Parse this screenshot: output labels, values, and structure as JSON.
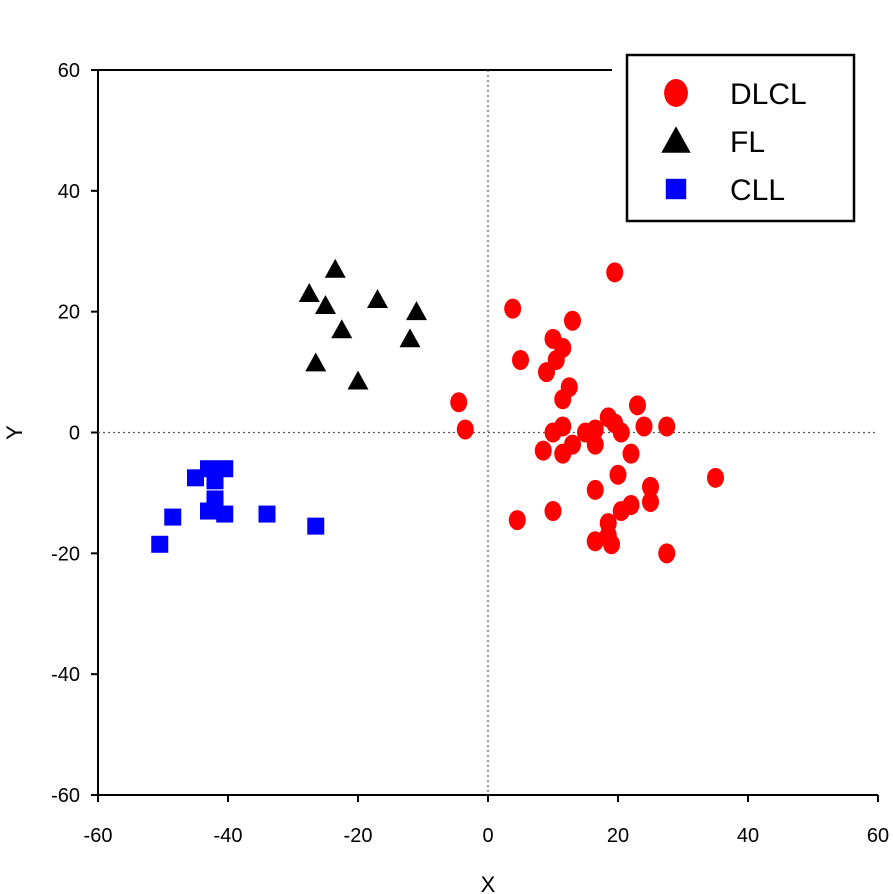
{
  "chart_data": {
    "type": "scatter",
    "title": "",
    "xlabel": "X",
    "ylabel": "Y",
    "xlim": [
      -60,
      60
    ],
    "ylim": [
      -60,
      60
    ],
    "xticks": [
      -60,
      -40,
      -20,
      0,
      20,
      40,
      60
    ],
    "yticks": [
      -60,
      -40,
      -20,
      0,
      20,
      40,
      60
    ],
    "zero_lines": "dotted",
    "grid": false,
    "legend": "top-right",
    "series": [
      {
        "name": "DLCL",
        "marker": "circle",
        "color": "#ff0000",
        "points": [
          [
            19.5,
            26.5
          ],
          [
            3.8,
            20.5
          ],
          [
            13,
            18.5
          ],
          [
            10,
            15.5
          ],
          [
            11.5,
            14
          ],
          [
            5,
            12
          ],
          [
            10.5,
            12
          ],
          [
            9,
            10
          ],
          [
            12.5,
            7.5
          ],
          [
            11.5,
            5.5
          ],
          [
            -4.5,
            5
          ],
          [
            18.5,
            2.5
          ],
          [
            23,
            4.5
          ],
          [
            -3.5,
            0.5
          ],
          [
            11.5,
            1
          ],
          [
            24,
            1
          ],
          [
            27.5,
            1
          ],
          [
            10,
            0
          ],
          [
            15,
            0
          ],
          [
            16.5,
            0.5
          ],
          [
            19.5,
            1.5
          ],
          [
            20.5,
            0
          ],
          [
            13,
            -2
          ],
          [
            16.5,
            -2
          ],
          [
            8.5,
            -3
          ],
          [
            11.5,
            -3.5
          ],
          [
            22,
            -3.5
          ],
          [
            20,
            -7
          ],
          [
            35,
            -7.5
          ],
          [
            25,
            -9
          ],
          [
            16.5,
            -9.5
          ],
          [
            25,
            -11.5
          ],
          [
            22,
            -12
          ],
          [
            20.5,
            -13
          ],
          [
            10,
            -13
          ],
          [
            4.5,
            -14.5
          ],
          [
            18.5,
            -15
          ],
          [
            18.5,
            -17
          ],
          [
            16.5,
            -18
          ],
          [
            19,
            -18.5
          ],
          [
            27.5,
            -20
          ]
        ]
      },
      {
        "name": "FL",
        "marker": "triangle",
        "color": "#000000",
        "points": [
          [
            -23.5,
            27
          ],
          [
            -27.5,
            23
          ],
          [
            -17,
            22
          ],
          [
            -25,
            21
          ],
          [
            -11,
            20
          ],
          [
            -22.5,
            17
          ],
          [
            -12,
            15.5
          ],
          [
            -26.5,
            11.5
          ],
          [
            -20,
            8.5
          ]
        ]
      },
      {
        "name": "CLL",
        "marker": "square",
        "color": "#0000ff",
        "points": [
          [
            -43,
            -6
          ],
          [
            -40.5,
            -6
          ],
          [
            -45,
            -7.5
          ],
          [
            -42,
            -8
          ],
          [
            -42,
            -11
          ],
          [
            -43,
            -13
          ],
          [
            -40.5,
            -13.5
          ],
          [
            -34,
            -13.5
          ],
          [
            -48.5,
            -14
          ],
          [
            -26.5,
            -15.5
          ],
          [
            -50.5,
            -18.5
          ]
        ]
      }
    ]
  }
}
